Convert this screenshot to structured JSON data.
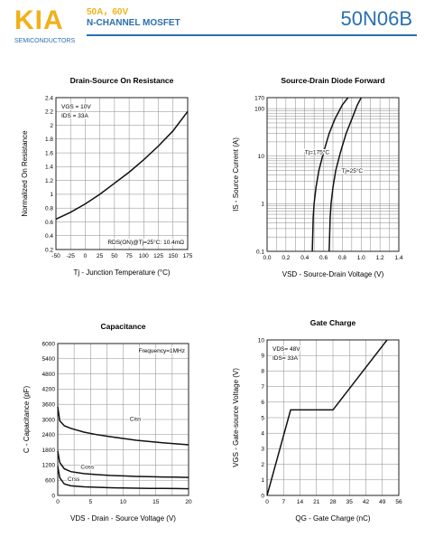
{
  "header": {
    "logo": "KIA",
    "company": "SEMICONDUCTORS",
    "spec": "50A，60V",
    "type": "N-CHANNEL MOSFET",
    "part": "50N06B"
  },
  "chart_data": [
    {
      "type": "line",
      "title": "Drain-Source On Resistance",
      "xlabel": "Tj - Junction Temperature (°C)",
      "ylabel": "Normalized On Resistance",
      "xlim": [
        -50,
        175
      ],
      "ylim": [
        0.2,
        2.4
      ],
      "xticks": [
        -50,
        -25,
        0,
        25,
        50,
        75,
        100,
        125,
        150,
        175
      ],
      "yticks": [
        0.2,
        0.4,
        0.6,
        0.8,
        1.0,
        1.2,
        1.4,
        1.6,
        1.8,
        2.0,
        2.2,
        2.4
      ],
      "ytick_labels": [
        "0.2",
        "0.4",
        "0.6",
        "0.8",
        "1",
        "1.2",
        "1.4",
        "1.6",
        "1.8",
        "2",
        "2.2",
        "2.4"
      ],
      "grid": true,
      "annotations": [
        "VGS = 10V",
        "IDS = 33A",
        "RDS(ON)@Tj=25°C: 10.4mΩ"
      ],
      "series": [
        {
          "x": [
            -50,
            -25,
            0,
            25,
            50,
            75,
            100,
            125,
            150,
            175
          ],
          "y": [
            0.64,
            0.74,
            0.86,
            1.0,
            1.16,
            1.32,
            1.5,
            1.7,
            1.92,
            2.2
          ]
        }
      ]
    },
    {
      "type": "line",
      "title": "Source-Drain Diode Forward",
      "xlabel": "VSD - Source-Drain Voltage (V)",
      "ylabel": "IS - Source Current (A)",
      "xlim": [
        0.0,
        1.4
      ],
      "ylim": [
        0.1,
        170
      ],
      "yscale": "log",
      "xticks": [
        0.0,
        0.2,
        0.4,
        0.6,
        0.8,
        1.0,
        1.2,
        1.4
      ],
      "xtick_labels": [
        "0.0",
        "0.2",
        "0.4",
        "0.6",
        "0.8",
        "1.0",
        "1.2",
        "1.4"
      ],
      "yticks": [
        0.1,
        1,
        10,
        100,
        170
      ],
      "ytick_labels": [
        "0.1",
        "1",
        "10",
        "100",
        "170"
      ],
      "grid": true,
      "series": [
        {
          "name": "Tj=175°C",
          "x": [
            0.48,
            0.49,
            0.5,
            0.52,
            0.55,
            0.6,
            0.66,
            0.72,
            0.8,
            0.86
          ],
          "y": [
            0.1,
            0.5,
            1,
            2.2,
            5,
            12,
            30,
            60,
            120,
            170
          ]
        },
        {
          "name": "Tj=25°C",
          "x": [
            0.66,
            0.67,
            0.68,
            0.7,
            0.73,
            0.78,
            0.84,
            0.9,
            0.96,
            1.0
          ],
          "y": [
            0.1,
            0.5,
            1,
            2.2,
            5,
            12,
            30,
            60,
            120,
            170
          ]
        }
      ]
    },
    {
      "type": "line",
      "title": "Capacitance",
      "xlabel": "VDS - Drain - Source Voltage (V)",
      "ylabel": "C - Capacitance (pF)",
      "xlim": [
        0,
        20
      ],
      "ylim": [
        0,
        6000
      ],
      "xticks": [
        0,
        5,
        10,
        15,
        20
      ],
      "yticks": [
        0,
        600,
        1200,
        1800,
        2400,
        3000,
        3600,
        4200,
        4800,
        5400,
        6000
      ],
      "grid": true,
      "annotations": [
        "Frequency=1MHz"
      ],
      "series": [
        {
          "name": "Ciss",
          "x": [
            0,
            0.3,
            1,
            2,
            4,
            6,
            8,
            10,
            12,
            14,
            16,
            18,
            20
          ],
          "y": [
            3500,
            2950,
            2750,
            2650,
            2500,
            2400,
            2320,
            2250,
            2180,
            2130,
            2080,
            2040,
            2000
          ]
        },
        {
          "name": "Coss",
          "x": [
            0,
            0.3,
            1,
            2,
            4,
            6,
            8,
            10,
            12,
            14,
            16,
            18,
            20
          ],
          "y": [
            1750,
            1300,
            1050,
            940,
            860,
            820,
            790,
            770,
            750,
            740,
            730,
            720,
            710
          ]
        },
        {
          "name": "Crss",
          "x": [
            0,
            0.3,
            1,
            2,
            4,
            6,
            8,
            10,
            12,
            14,
            16,
            18,
            20
          ],
          "y": [
            1150,
            700,
            450,
            380,
            340,
            320,
            305,
            295,
            285,
            280,
            275,
            270,
            265
          ]
        }
      ]
    },
    {
      "type": "line",
      "title": "Gate Charge",
      "xlabel": "QG - Gate Charge (nC)",
      "ylabel": "VGS - Gate-source Voltage (V)",
      "xlim": [
        0,
        56
      ],
      "ylim": [
        0,
        10
      ],
      "xticks": [
        0,
        7,
        14,
        21,
        28,
        35,
        42,
        49,
        56
      ],
      "yticks": [
        0,
        1,
        2,
        3,
        4,
        5,
        6,
        7,
        8,
        9,
        10
      ],
      "grid": true,
      "annotations": [
        "VDS= 48V",
        "IDS= 33A"
      ],
      "series": [
        {
          "x": [
            0,
            10,
            28,
            51
          ],
          "y": [
            0,
            5.5,
            5.5,
            10
          ]
        }
      ]
    }
  ]
}
